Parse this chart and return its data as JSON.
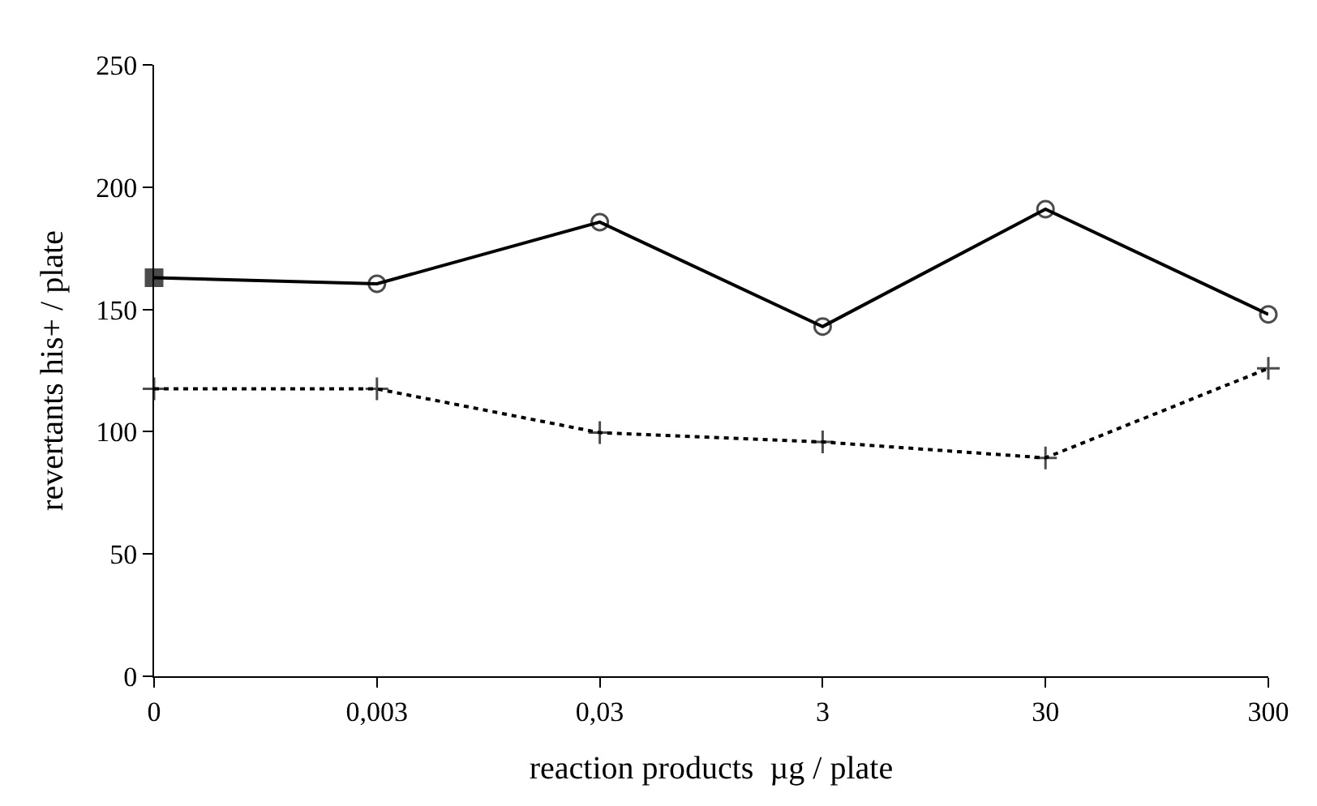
{
  "chart_data": {
    "type": "line",
    "xlabel": "reaction products  µg / plate",
    "ylabel": "revertants his+ / plate",
    "categories": [
      "0",
      "0,003",
      "0,03",
      "3",
      "30",
      "300"
    ],
    "series": [
      {
        "color": "#000000",
        "line_style": "solid",
        "marker": [
          "square",
          "circle",
          "circle",
          "circle",
          "circle",
          "circle"
        ],
        "values": [
          163,
          160.5,
          185.7,
          143,
          191,
          148
        ]
      },
      {
        "color": "#000000",
        "line_style": "dotted",
        "marker": "cross",
        "values": [
          117.5,
          117.5,
          99.6,
          95.8,
          89.3,
          125.9
        ]
      }
    ],
    "ylim": [
      0,
      250
    ],
    "yticks": [
      0,
      50,
      100,
      150,
      200,
      250
    ]
  }
}
